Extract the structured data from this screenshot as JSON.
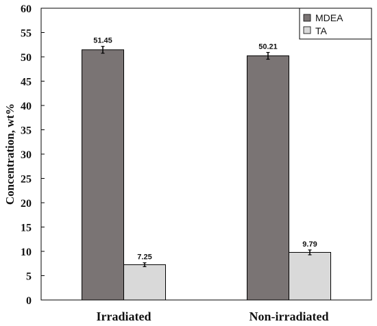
{
  "chart_data": {
    "type": "bar",
    "title": "",
    "xlabel": "",
    "ylabel": "Concentration, wt%",
    "categories": [
      "Irradiated",
      "Non-irradiated"
    ],
    "series": [
      {
        "name": "MDEA",
        "values": [
          51.45,
          50.21
        ],
        "labels": [
          "51.45",
          "50.21"
        ],
        "errors": [
          0.7,
          0.7
        ],
        "color": "#7a7474"
      },
      {
        "name": "TA",
        "values": [
          7.25,
          9.79
        ],
        "labels": [
          "7.25",
          "9.79"
        ],
        "errors": [
          0.4,
          0.5
        ],
        "color": "#d9d9d9"
      }
    ],
    "ylim": [
      0,
      60
    ],
    "yticks": [
      0,
      5,
      10,
      15,
      20,
      25,
      30,
      35,
      40,
      45,
      50,
      55,
      60
    ],
    "ytick_labels": [
      "0",
      "5",
      "10",
      "15",
      "20",
      "25",
      "30",
      "35",
      "40",
      "45",
      "50",
      "55",
      "60"
    ],
    "grid": false,
    "legend_position": "top-right"
  }
}
